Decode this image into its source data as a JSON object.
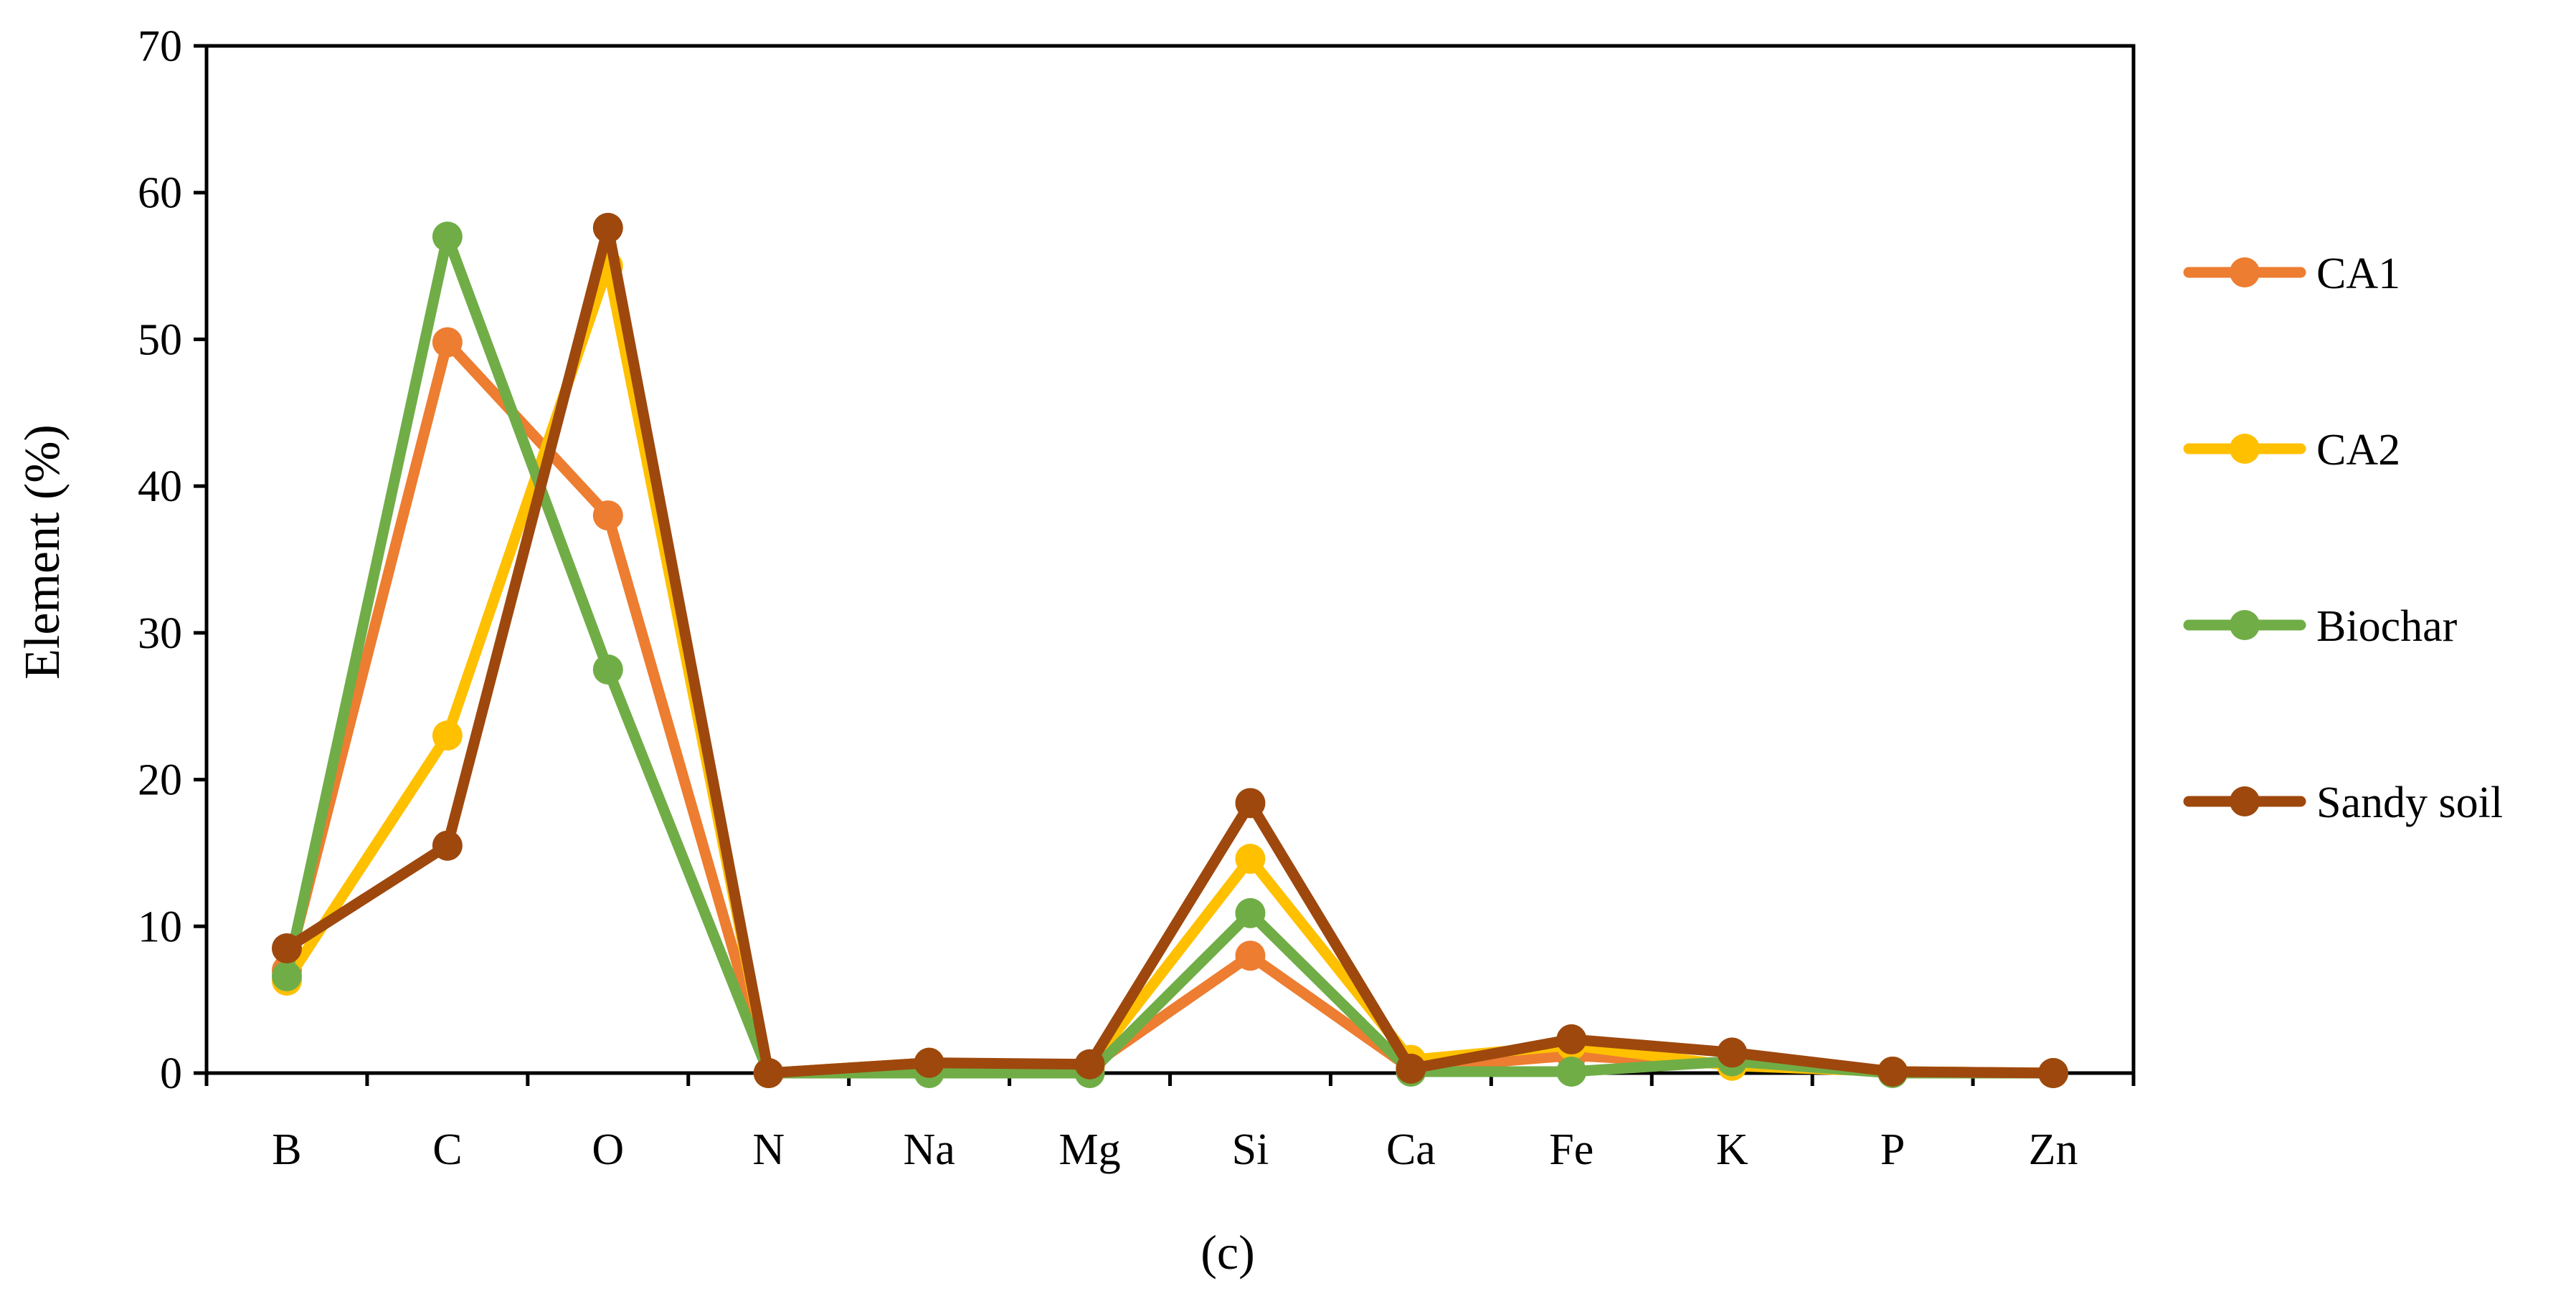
{
  "chart_data": {
    "type": "line",
    "categories": [
      "B",
      "C",
      "O",
      "N",
      "Na",
      "Mg",
      "Si",
      "Ca",
      "Fe",
      "K",
      "P",
      "Zn"
    ],
    "ylabel": "Element (%)",
    "xlabel": "",
    "ylim": [
      0,
      70
    ],
    "yticks": [
      0,
      10,
      20,
      30,
      40,
      50,
      60,
      70
    ],
    "caption": "(c)",
    "legend_position": "right",
    "grid": false,
    "series": [
      {
        "name": "CA1",
        "color": "#ED7D31",
        "values": [
          7.0,
          49.8,
          38.0,
          0.0,
          0.7,
          0.4,
          8.0,
          0.3,
          1.2,
          0.6,
          0.1,
          0.0
        ]
      },
      {
        "name": "CA2",
        "color": "#FFC000",
        "values": [
          6.3,
          23.0,
          55.0,
          0.0,
          0.7,
          0.5,
          14.6,
          0.9,
          1.9,
          0.5,
          0.1,
          0.0
        ]
      },
      {
        "name": "Biochar",
        "color": "#70AD47",
        "values": [
          6.6,
          57.0,
          27.5,
          0.0,
          0.0,
          0.0,
          10.9,
          0.1,
          0.1,
          0.8,
          0.0,
          0.0
        ]
      },
      {
        "name": "Sandy soil",
        "color": "#9E480E",
        "values": [
          8.5,
          15.5,
          57.6,
          0.0,
          0.7,
          0.6,
          18.4,
          0.3,
          2.3,
          1.4,
          0.1,
          0.0
        ]
      }
    ]
  }
}
